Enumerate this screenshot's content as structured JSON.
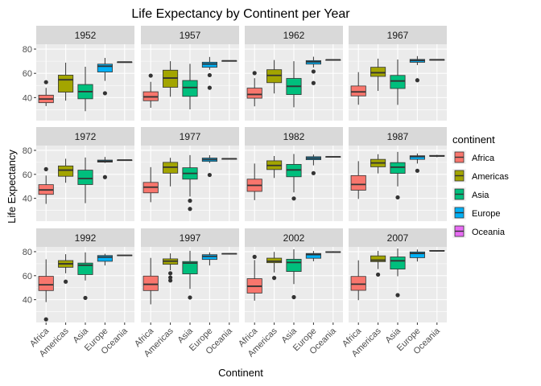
{
  "chart_data": {
    "type": "boxplot",
    "title": "Life Expectancy by Continent per Year",
    "xlabel": "Continent",
    "ylabel": "Life Expectancy",
    "ylim": [
      21,
      84
    ],
    "y_ticks": [
      40,
      60,
      80
    ],
    "categories": [
      "Africa",
      "Americas",
      "Asia",
      "Europe",
      "Oceania"
    ],
    "facet_layout": {
      "rows": 3,
      "cols": 4
    },
    "legend": {
      "title": "continent",
      "position": "right",
      "entries": [
        {
          "name": "Africa",
          "color": "#F8766D"
        },
        {
          "name": "Americas",
          "color": "#A3A500"
        },
        {
          "name": "Asia",
          "color": "#00BF7D"
        },
        {
          "name": "Europe",
          "color": "#00B0F6"
        },
        {
          "name": "Oceania",
          "color": "#E76BF3"
        }
      ]
    },
    "grid": true,
    "panels": [
      {
        "label": "1952",
        "boxes": [
          {
            "category": "Africa",
            "lower": 33,
            "q1": 35.8,
            "median": 38.8,
            "q3": 42,
            "upper": 48,
            "outliers": [
              52.7
            ]
          },
          {
            "category": "Americas",
            "lower": 37.5,
            "q1": 44.5,
            "median": 54.7,
            "q3": 58.5,
            "upper": 68.8,
            "outliers": []
          },
          {
            "category": "Asia",
            "lower": 28.8,
            "q1": 39,
            "median": 44.9,
            "q3": 50.8,
            "upper": 65.4,
            "outliers": []
          },
          {
            "category": "Europe",
            "lower": 53.8,
            "q1": 61.1,
            "median": 65.9,
            "q3": 67.6,
            "upper": 72.7,
            "outliers": [
              43.6
            ]
          },
          {
            "category": "Oceania",
            "lower": 69.1,
            "q1": 69.2,
            "median": 69.3,
            "q3": 69.4,
            "upper": 69.4,
            "outliers": []
          }
        ]
      },
      {
        "label": "1957",
        "boxes": [
          {
            "category": "Africa",
            "lower": 31.6,
            "q1": 37.4,
            "median": 40.6,
            "q3": 44.8,
            "upper": 53,
            "outliers": [
              58.1
            ]
          },
          {
            "category": "Americas",
            "lower": 40.7,
            "q1": 48.5,
            "median": 56.1,
            "q3": 62.6,
            "upper": 70,
            "outliers": []
          },
          {
            "category": "Asia",
            "lower": 30.3,
            "q1": 41,
            "median": 48.3,
            "q3": 54.1,
            "upper": 67.8,
            "outliers": []
          },
          {
            "category": "Europe",
            "lower": 63,
            "q1": 65,
            "median": 67.7,
            "q3": 69.2,
            "upper": 73.5,
            "outliers": [
              58.5,
              48.1
            ]
          },
          {
            "category": "Oceania",
            "lower": 70.3,
            "q1": 70.3,
            "median": 70.3,
            "q3": 70.4,
            "upper": 70.4,
            "outliers": []
          }
        ]
      },
      {
        "label": "1962",
        "boxes": [
          {
            "category": "Africa",
            "lower": 32.8,
            "q1": 39.5,
            "median": 42.6,
            "q3": 47.8,
            "upper": 56,
            "outliers": [
              60.2
            ]
          },
          {
            "category": "Americas",
            "lower": 43.4,
            "q1": 52.3,
            "median": 58.3,
            "q3": 63,
            "upper": 71,
            "outliers": []
          },
          {
            "category": "Asia",
            "lower": 32,
            "q1": 42.5,
            "median": 49.3,
            "q3": 55.8,
            "upper": 70,
            "outliers": []
          },
          {
            "category": "Europe",
            "lower": 64.8,
            "q1": 67.6,
            "median": 69.5,
            "q3": 70.5,
            "upper": 73.7,
            "outliers": [
              61.5,
              52
            ]
          },
          {
            "category": "Oceania",
            "lower": 71,
            "q1": 71.1,
            "median": 71.1,
            "q3": 71.2,
            "upper": 71.2,
            "outliers": []
          }
        ]
      },
      {
        "label": "1967",
        "boxes": [
          {
            "category": "Africa",
            "lower": 34.1,
            "q1": 41.4,
            "median": 44.7,
            "q3": 49.6,
            "upper": 61,
            "outliers": []
          },
          {
            "category": "Americas",
            "lower": 45.5,
            "q1": 57.5,
            "median": 60.5,
            "q3": 65,
            "upper": 72.1,
            "outliers": []
          },
          {
            "category": "Asia",
            "lower": 34,
            "q1": 47.5,
            "median": 53.7,
            "q3": 58.3,
            "upper": 71.4,
            "outliers": []
          },
          {
            "category": "Europe",
            "lower": 66.8,
            "q1": 69.1,
            "median": 70.6,
            "q3": 71.5,
            "upper": 74.2,
            "outliers": [
              54.3
            ]
          },
          {
            "category": "Oceania",
            "lower": 71.1,
            "q1": 71.1,
            "median": 71.2,
            "q3": 71.3,
            "upper": 71.5,
            "outliers": []
          }
        ]
      },
      {
        "label": "1972",
        "boxes": [
          {
            "category": "Africa",
            "lower": 35.4,
            "q1": 43.3,
            "median": 47,
            "q3": 51.4,
            "upper": 59,
            "outliers": [
              64.3
            ]
          },
          {
            "category": "Americas",
            "lower": 53,
            "q1": 58.4,
            "median": 63.5,
            "q3": 67,
            "upper": 73,
            "outliers": []
          },
          {
            "category": "Asia",
            "lower": 36,
            "q1": 51.5,
            "median": 56.5,
            "q3": 63.5,
            "upper": 74,
            "outliers": []
          },
          {
            "category": "Europe",
            "lower": 69.5,
            "q1": 70.2,
            "median": 70.9,
            "q3": 71.9,
            "upper": 74.5,
            "outliers": [
              57.7
            ]
          },
          {
            "category": "Oceania",
            "lower": 71.8,
            "q1": 71.9,
            "median": 71.9,
            "q3": 72.0,
            "upper": 72.2,
            "outliers": []
          }
        ]
      },
      {
        "label": "1977",
        "boxes": [
          {
            "category": "Africa",
            "lower": 36.8,
            "q1": 44.6,
            "median": 49.3,
            "q3": 53.3,
            "upper": 66,
            "outliers": []
          },
          {
            "category": "Americas",
            "lower": 50,
            "q1": 61,
            "median": 66,
            "q3": 70,
            "upper": 73.8,
            "outliers": []
          },
          {
            "category": "Asia",
            "lower": 41.5,
            "q1": 56,
            "median": 60.8,
            "q3": 65.5,
            "upper": 76,
            "outliers": [
              38,
              31.2
            ]
          },
          {
            "category": "Europe",
            "lower": 69.5,
            "q1": 70.8,
            "median": 72.3,
            "q3": 73.6,
            "upper": 76,
            "outliers": [
              59.5
            ]
          },
          {
            "category": "Oceania",
            "lower": 72.8,
            "q1": 72.9,
            "median": 73,
            "q3": 73.1,
            "upper": 73.2,
            "outliers": []
          }
        ]
      },
      {
        "label": "1982",
        "boxes": [
          {
            "category": "Africa",
            "lower": 38.5,
            "q1": 45.8,
            "median": 50.8,
            "q3": 56,
            "upper": 69,
            "outliers": []
          },
          {
            "category": "Americas",
            "lower": 57,
            "q1": 64,
            "median": 67.4,
            "q3": 71.3,
            "upper": 75.3,
            "outliers": []
          },
          {
            "category": "Asia",
            "lower": 45,
            "q1": 58,
            "median": 63.7,
            "q3": 68.3,
            "upper": 77,
            "outliers": [
              39.9
            ]
          },
          {
            "category": "Europe",
            "lower": 67.5,
            "q1": 72.2,
            "median": 73.5,
            "q3": 74.7,
            "upper": 76.5,
            "outliers": [
              61
            ]
          },
          {
            "category": "Oceania",
            "lower": 74.3,
            "q1": 74.4,
            "median": 74.6,
            "q3": 74.8,
            "upper": 74.9,
            "outliers": []
          }
        ]
      },
      {
        "label": "1987",
        "boxes": [
          {
            "category": "Africa",
            "lower": 39.5,
            "q1": 46.8,
            "median": 51.6,
            "q3": 59,
            "upper": 71,
            "outliers": []
          },
          {
            "category": "Americas",
            "lower": 60.8,
            "q1": 66.3,
            "median": 69.5,
            "q3": 72.5,
            "upper": 76.8,
            "outliers": []
          },
          {
            "category": "Asia",
            "lower": 50,
            "q1": 60.8,
            "median": 66,
            "q3": 69.8,
            "upper": 78.7,
            "outliers": [
              40.8
            ]
          },
          {
            "category": "Europe",
            "lower": 69,
            "q1": 72.5,
            "median": 74.8,
            "q3": 75.5,
            "upper": 77.4,
            "outliers": [
              63
            ]
          },
          {
            "category": "Oceania",
            "lower": 74.3,
            "q1": 75,
            "median": 75.3,
            "q3": 75.8,
            "upper": 76.3,
            "outliers": []
          }
        ]
      },
      {
        "label": "1992",
        "boxes": [
          {
            "category": "Africa",
            "lower": 38,
            "q1": 47.6,
            "median": 52.4,
            "q3": 59.5,
            "upper": 73.6,
            "outliers": [
              23.6
            ]
          },
          {
            "category": "Americas",
            "lower": 62,
            "q1": 67,
            "median": 69.9,
            "q3": 72.6,
            "upper": 77.9,
            "outliers": [
              55
            ]
          },
          {
            "category": "Asia",
            "lower": 56,
            "q1": 60.9,
            "median": 68.7,
            "q3": 70.5,
            "upper": 79.4,
            "outliers": [
              41.5
            ]
          },
          {
            "category": "Europe",
            "lower": 68.5,
            "q1": 72,
            "median": 75.5,
            "q3": 76.8,
            "upper": 78.3,
            "outliers": []
          },
          {
            "category": "Oceania",
            "lower": 76.3,
            "q1": 76.6,
            "median": 76.9,
            "q3": 77.2,
            "upper": 77.4,
            "outliers": []
          }
        ]
      },
      {
        "label": "1997",
        "boxes": [
          {
            "category": "Africa",
            "lower": 36.1,
            "q1": 47.6,
            "median": 52.8,
            "q3": 59.7,
            "upper": 74.8,
            "outliers": []
          },
          {
            "category": "Americas",
            "lower": 64.5,
            "q1": 69.5,
            "median": 72.1,
            "q3": 74,
            "upper": 78.6,
            "outliers": [
              62,
              58.5,
              56
            ]
          },
          {
            "category": "Asia",
            "lower": 49,
            "q1": 61.5,
            "median": 70.5,
            "q3": 71.8,
            "upper": 80.7,
            "outliers": [
              41.8
            ]
          },
          {
            "category": "Europe",
            "lower": 68.5,
            "q1": 73.5,
            "median": 76.1,
            "q3": 77.5,
            "upper": 79.4,
            "outliers": []
          },
          {
            "category": "Oceania",
            "lower": 77.6,
            "q1": 77.9,
            "median": 78.2,
            "q3": 78.5,
            "upper": 78.8,
            "outliers": []
          }
        ]
      },
      {
        "label": "2002",
        "boxes": [
          {
            "category": "Africa",
            "lower": 39.2,
            "q1": 45.5,
            "median": 51.2,
            "q3": 57.5,
            "upper": 73,
            "outliers": [
              75.7
            ]
          },
          {
            "category": "Americas",
            "lower": 62.7,
            "q1": 70.8,
            "median": 72,
            "q3": 74.6,
            "upper": 79.8,
            "outliers": [
              58.1
            ]
          },
          {
            "category": "Asia",
            "lower": 53,
            "q1": 63.5,
            "median": 71,
            "q3": 73.7,
            "upper": 82,
            "outliers": [
              42.1
            ]
          },
          {
            "category": "Europe",
            "lower": 72,
            "q1": 74.5,
            "median": 77.6,
            "q3": 78.5,
            "upper": 80.6,
            "outliers": []
          },
          {
            "category": "Oceania",
            "lower": 79.1,
            "q1": 79.4,
            "median": 79.7,
            "q3": 80,
            "upper": 80.4,
            "outliers": []
          }
        ]
      },
      {
        "label": "2007",
        "boxes": [
          {
            "category": "Africa",
            "lower": 39.6,
            "q1": 47.8,
            "median": 52.9,
            "q3": 59.4,
            "upper": 72.8,
            "outliers": []
          },
          {
            "category": "Americas",
            "lower": 65.5,
            "q1": 71.7,
            "median": 72.9,
            "q3": 76.5,
            "upper": 80.7,
            "outliers": [
              60.9
            ]
          },
          {
            "category": "Asia",
            "lower": 59.5,
            "q1": 65.5,
            "median": 72.4,
            "q3": 75.6,
            "upper": 82.6,
            "outliers": [
              43.8
            ]
          },
          {
            "category": "Europe",
            "lower": 71.8,
            "q1": 75,
            "median": 78.6,
            "q3": 79.8,
            "upper": 81.8,
            "outliers": []
          },
          {
            "category": "Oceania",
            "lower": 80.2,
            "q1": 80.5,
            "median": 80.7,
            "q3": 81,
            "upper": 81.2,
            "outliers": []
          }
        ]
      }
    ]
  }
}
